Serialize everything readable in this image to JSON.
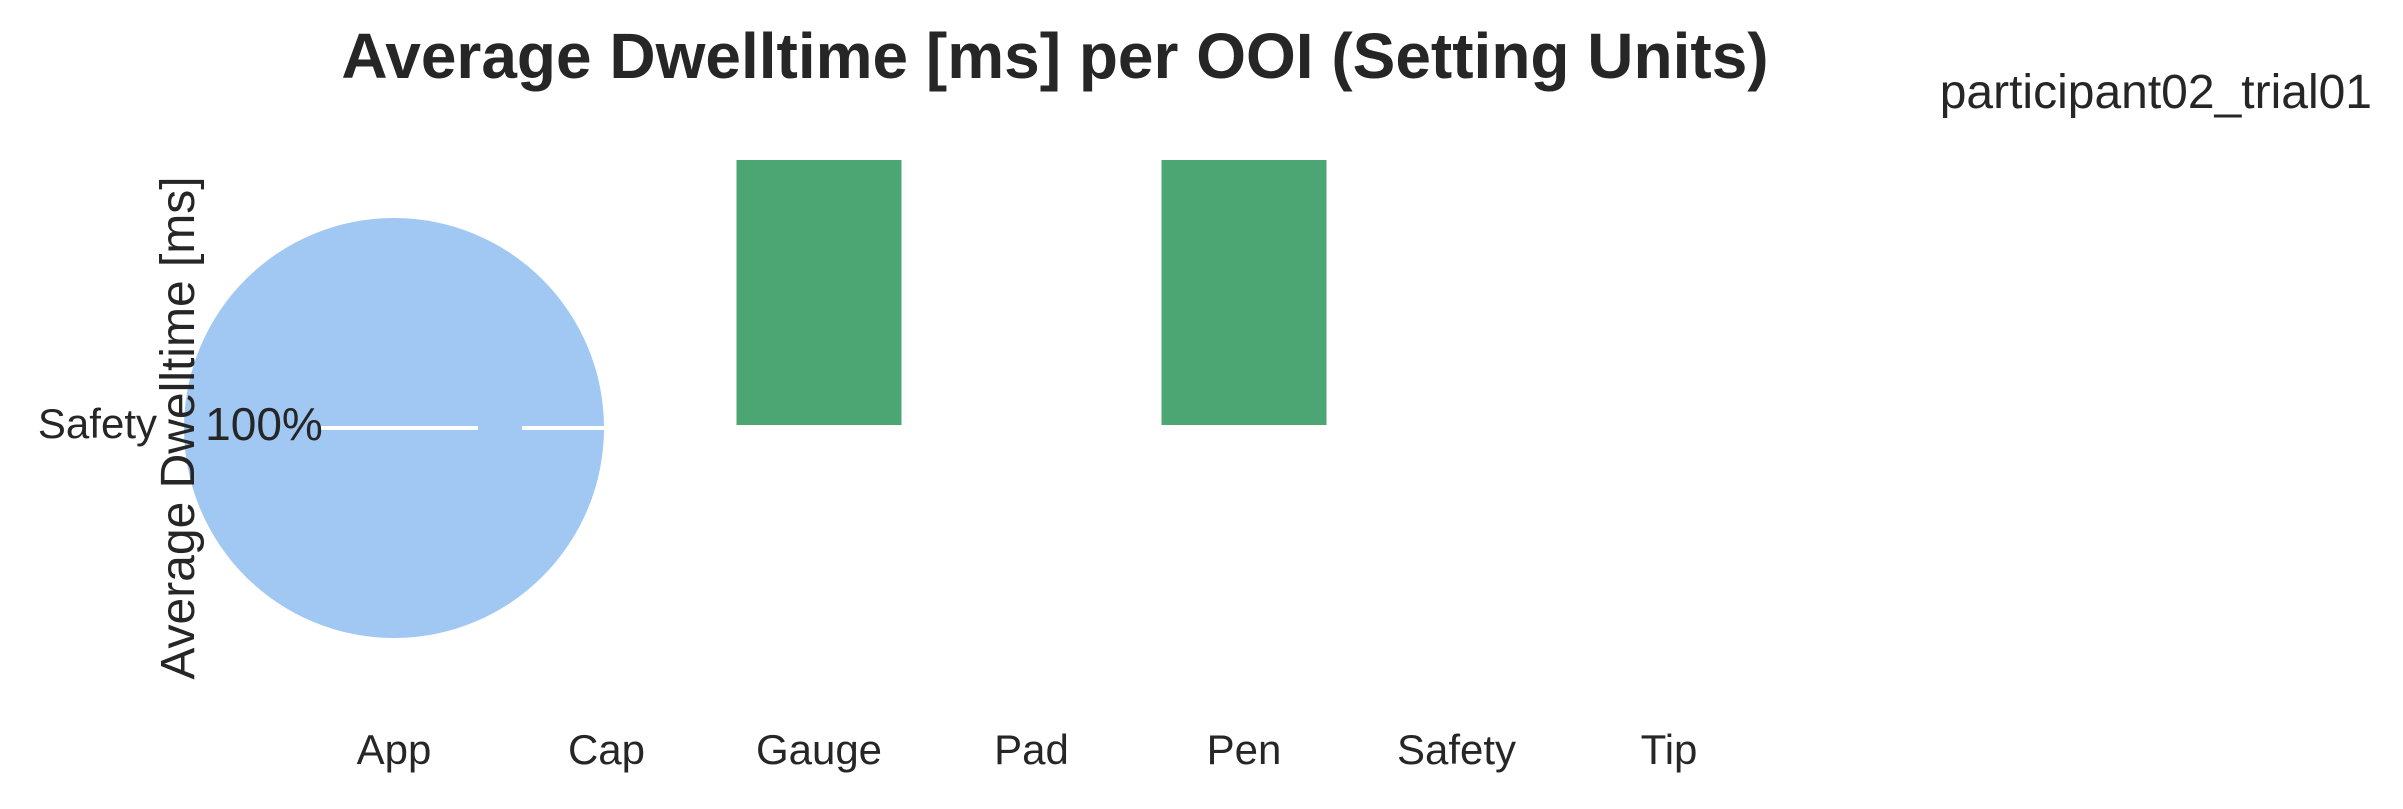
{
  "chart_data": [
    {
      "type": "bar",
      "title": "Average Dwelltime [ms] per OOI (Setting Units)",
      "xlabel": "",
      "ylabel": "Average Dwelltime [ms]",
      "categories": [
        "App",
        "Cap",
        "Gauge",
        "Pad",
        "Pen",
        "Safety",
        "Tip"
      ],
      "values": [
        null,
        null,
        1,
        null,
        1,
        null,
        null
      ],
      "bar_color": "#4ca673",
      "ylim": [
        -1,
        1
      ],
      "y_ticks_visible": false,
      "grid": false
    },
    {
      "type": "pie",
      "labels": [
        "Safety"
      ],
      "values": [
        100
      ],
      "value_labels": [
        "100%"
      ],
      "colors": [
        "#a1c8f3"
      ]
    }
  ],
  "suptitle": "participant02_trial01"
}
